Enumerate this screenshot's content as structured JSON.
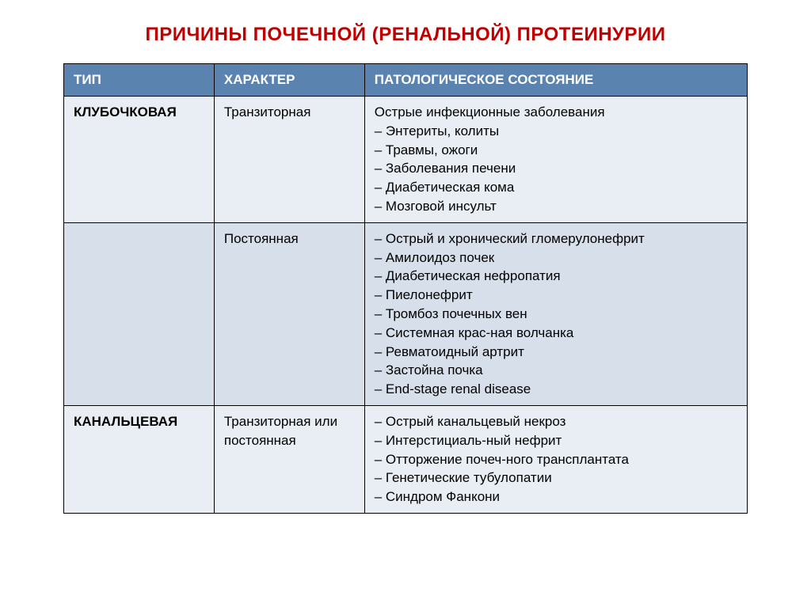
{
  "title": "ПРИЧИНЫ ПОЧЕЧНОЙ (РЕНАЛЬНОЙ) ПРОТЕИНУРИИ",
  "columns": {
    "type": "ТИП",
    "character": "ХАРАКТЕР",
    "pathology": "ПАТОЛОГИЧЕСКОЕ СОСТОЯНИЕ"
  },
  "rows": [
    {
      "type": "КЛУБОЧКОВАЯ",
      "character": "Транзиторная",
      "pathology": "Острые инфекционные заболевания\n– Энтериты, колиты\n– Травмы, ожоги\n– Заболевания печени\n– Диабетическая кома\n– Мозговой инсульт",
      "bg": "light"
    },
    {
      "type": "",
      "character": "Постоянная",
      "pathology": "– Острый и хронический гломерулонефрит\n– Амилоидоз почек\n– Диабетическая нефропатия\n– Пиелонефрит\n– Тромбоз почечных вен\n– Системная крас-ная волчанка\n– Ревматоидный артрит\n– Застойна почка\n– End-stage renal disease",
      "bg": "alt"
    },
    {
      "type": "КАНАЛЬЦЕВАЯ",
      "character": "Транзиторная или постоянная",
      "pathology": "– Острый канальцевый некроз\n– Интерстициаль-ный нефрит\n– Отторжение почеч-ного трансплантата\n– Генетические тубулопатии\n– Синдром Фанкони",
      "bg": "light"
    }
  ],
  "styling": {
    "title_color": "#c00000",
    "title_fontsize": 24,
    "header_bg": "#5a83b0",
    "header_text": "#ffffff",
    "row_light_bg": "#e9eef5",
    "row_alt_bg": "#d7dfeb",
    "border_color": "#000000",
    "cell_fontsize": 17,
    "col_widths": [
      "22%",
      "22%",
      "56%"
    ]
  }
}
